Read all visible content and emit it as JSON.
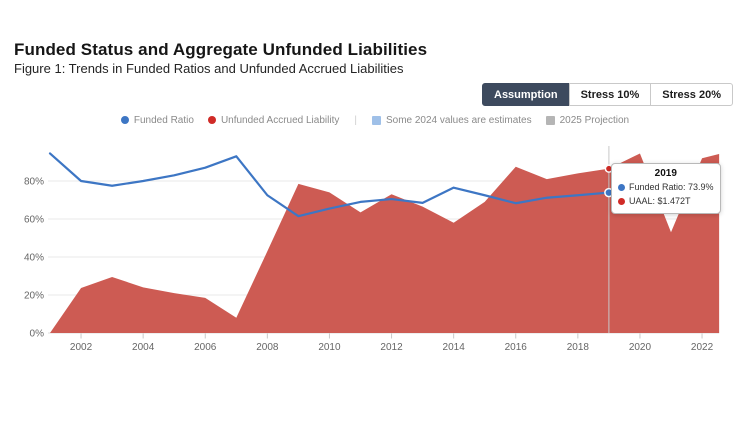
{
  "header": {
    "title": "Funded Status and Aggregate Unfunded Liabilities",
    "subtitle": "Figure 1: Trends in Funded Ratios and Unfunded Accrued Liabilities"
  },
  "controls": {
    "buttons": [
      {
        "label": "Assumption",
        "active": true
      },
      {
        "label": "Stress 10%",
        "active": false
      },
      {
        "label": "Stress 20%",
        "active": false
      }
    ],
    "active_bg_color": "#3d4a5e"
  },
  "legend": {
    "items": [
      {
        "label": "Funded Ratio",
        "marker": "dot",
        "color": "#3d76c4"
      },
      {
        "label": "Unfunded Accrued Liability",
        "marker": "dot",
        "color": "#d02b27"
      },
      {
        "label": "Some 2024 values are estimates",
        "marker": "square",
        "color": "#9fc0e8"
      },
      {
        "label": "2025 Projection",
        "marker": "square",
        "color": "#b5b5b5"
      }
    ],
    "separator": "|"
  },
  "tooltip": {
    "title": "2019",
    "items": [
      {
        "color": "#3d76c4",
        "label": "Funded Ratio: 73.9%"
      },
      {
        "color": "#d02b27",
        "label": "UAAL: $1.472T"
      }
    ]
  },
  "chart_data": {
    "type": "combo-line-area",
    "title": "Funded Status and Aggregate Unfunded Liabilities",
    "x": [
      2001,
      2002,
      2003,
      2004,
      2005,
      2006,
      2007,
      2008,
      2009,
      2010,
      2011,
      2012,
      2013,
      2014,
      2015,
      2016,
      2017,
      2018,
      2019,
      2020,
      2021,
      2022,
      2023
    ],
    "series": [
      {
        "name": "Funded Ratio",
        "type": "line",
        "color": "#3d76c4",
        "unit": "percent",
        "values": [
          94.5,
          80,
          77.5,
          80,
          83,
          87,
          93,
          72.5,
          61.5,
          65.5,
          69,
          70.5,
          68.5,
          76.5,
          72.5,
          68.3,
          71.2,
          72.5,
          73.9,
          74,
          74,
          74.3,
          74.5
        ]
      },
      {
        "name": "Unfunded Accrued Liability",
        "type": "area",
        "color": "#cd5b53",
        "unit": "percent-of-left-axis (secondary scale hidden; 2019 = $1.472T)",
        "values": [
          0,
          23.7,
          29.5,
          24,
          21,
          18.5,
          8,
          43,
          78.5,
          74,
          63.5,
          73,
          66.5,
          58,
          69,
          87.5,
          81,
          84,
          86.5,
          94.5,
          53,
          92,
          96
        ]
      }
    ],
    "xticks": [
      2002,
      2004,
      2006,
      2008,
      2010,
      2012,
      2014,
      2016,
      2018,
      2020,
      2022
    ],
    "yticks": [
      {
        "value": 0,
        "label": "0%"
      },
      {
        "value": 20,
        "label": "20%"
      },
      {
        "value": 40,
        "label": "40%"
      },
      {
        "value": 60,
        "label": "60%"
      },
      {
        "value": 80,
        "label": "80%"
      }
    ],
    "ylim": [
      0,
      100
    ],
    "xlim": [
      2001,
      2022.55
    ],
    "grid": "horizontal",
    "legend_position": "top-center",
    "hover": {
      "year": 2019,
      "funded_ratio": 73.9,
      "uaal": "$1.472T"
    }
  }
}
